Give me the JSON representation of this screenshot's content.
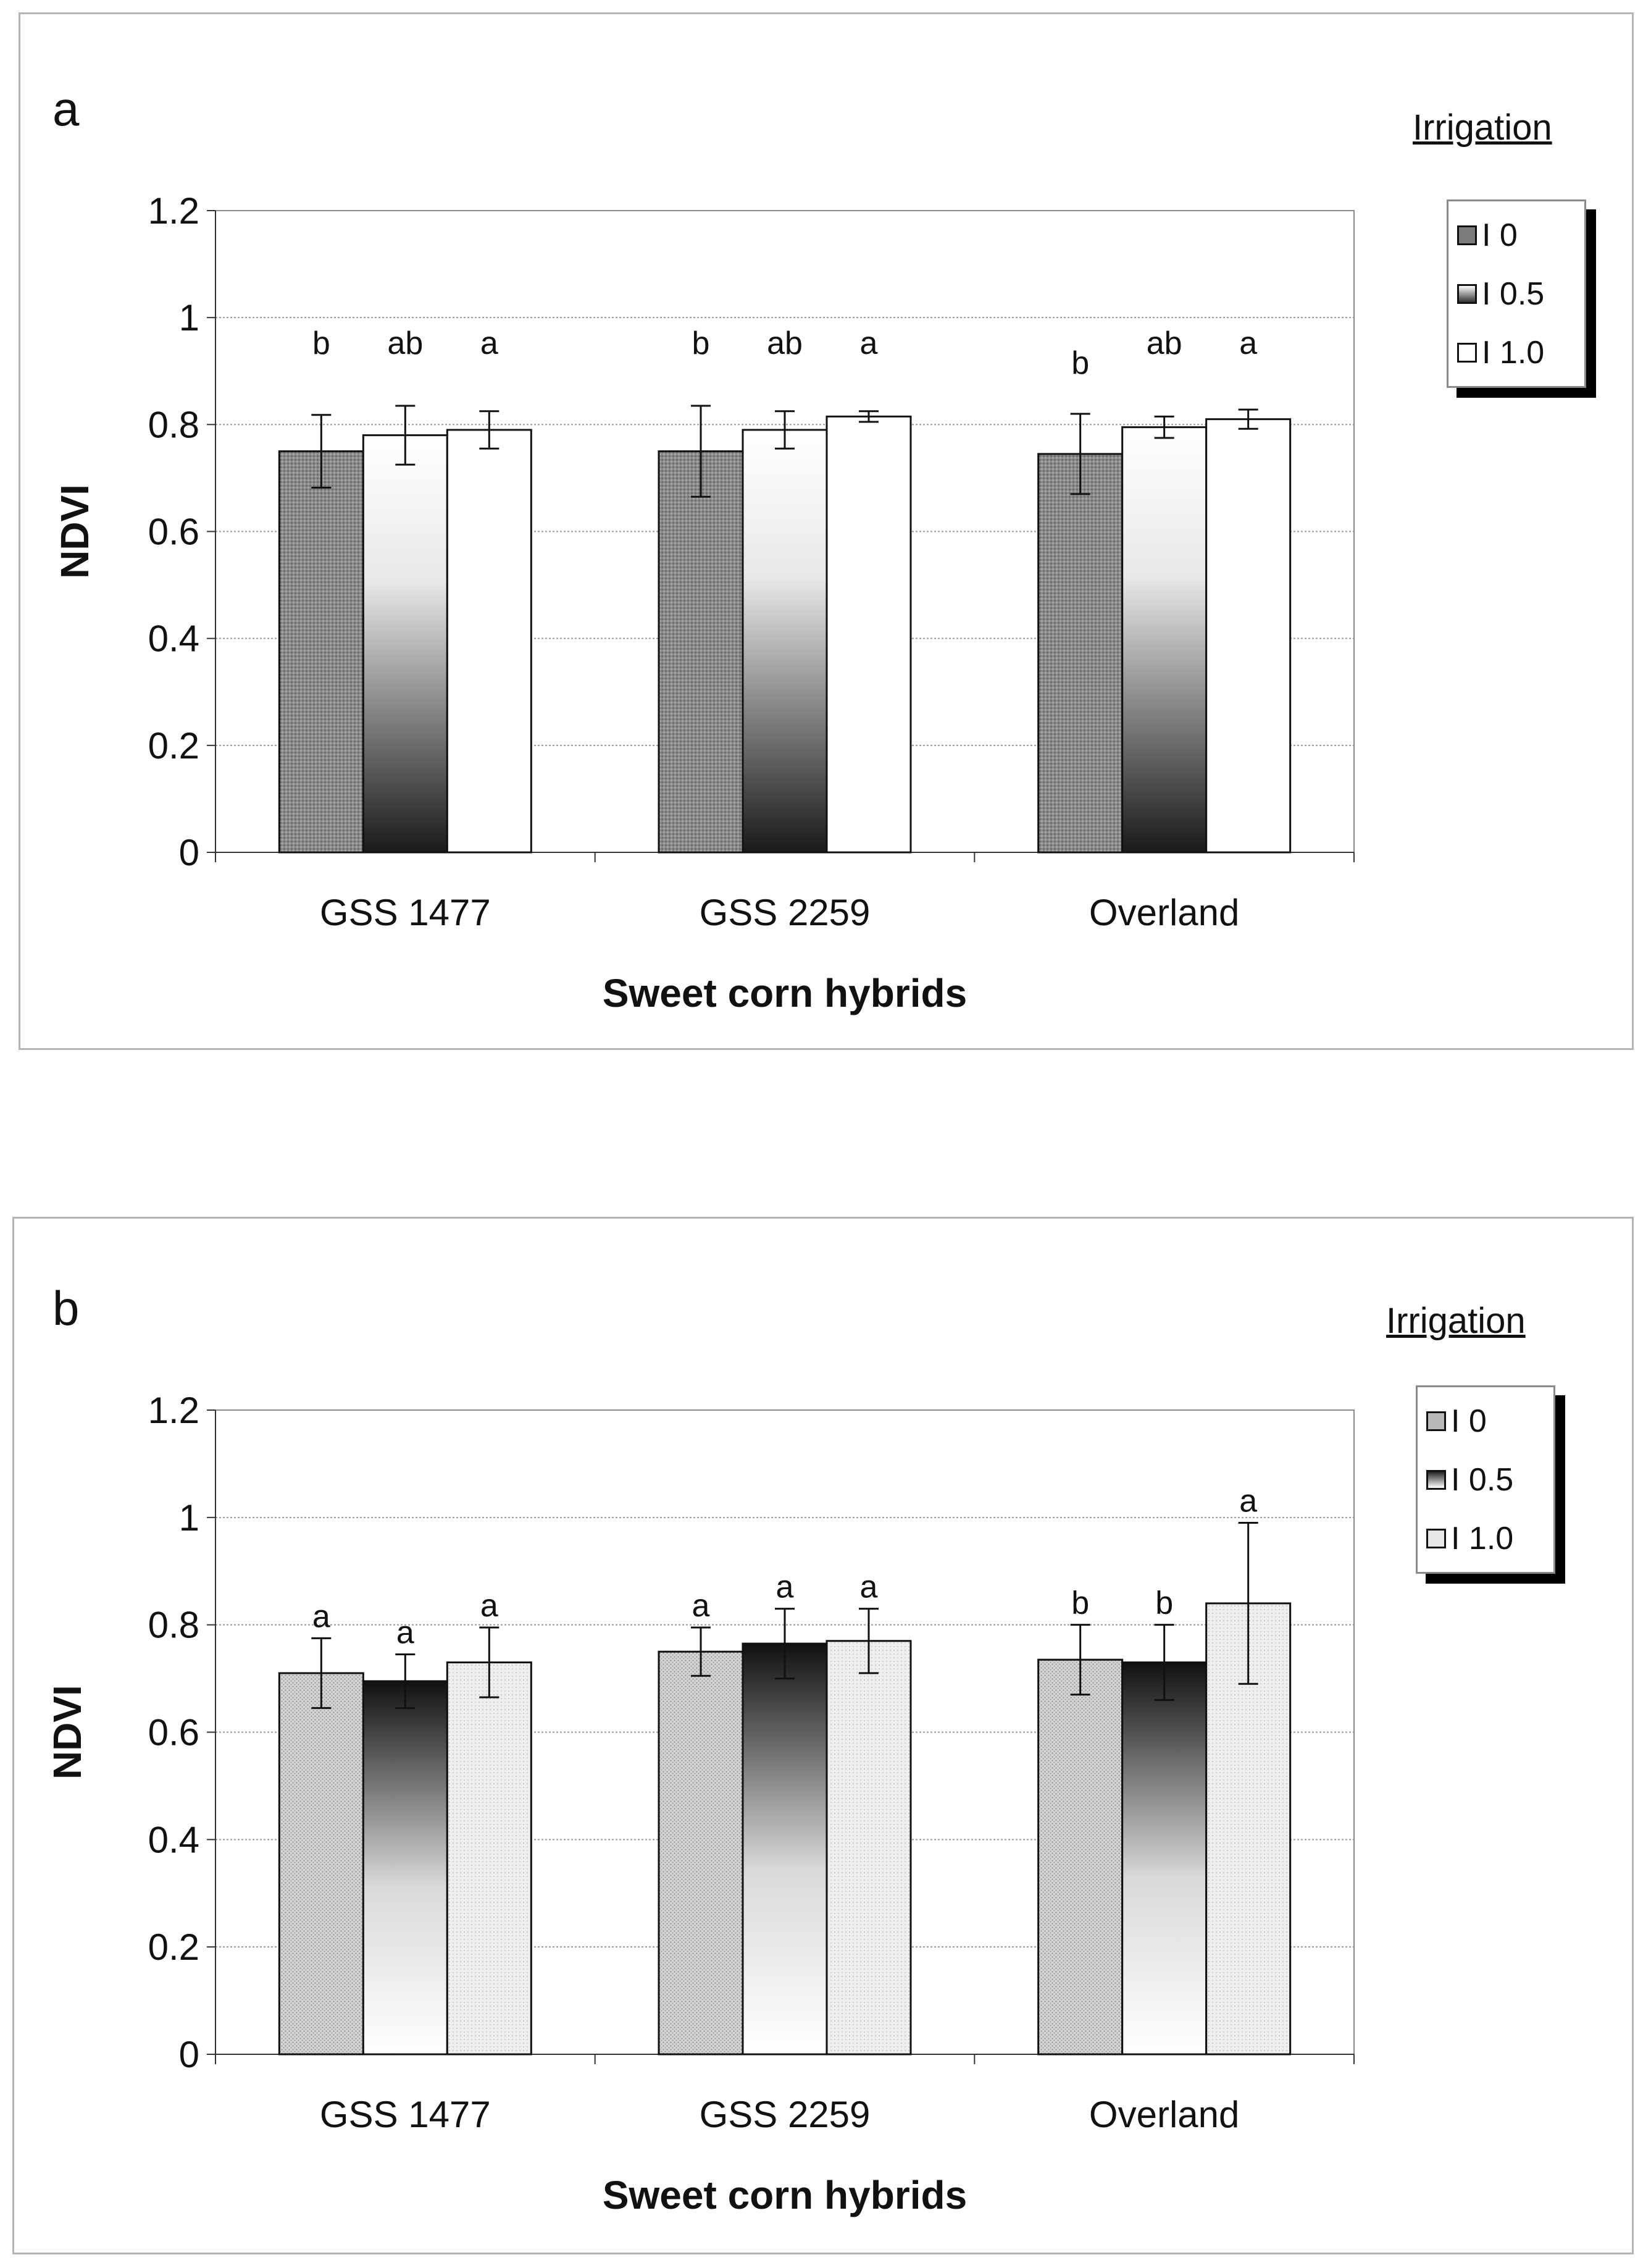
{
  "chart_data": [
    {
      "panel_label": "a",
      "type": "bar",
      "title": "",
      "xlabel": "Sweet corn hybrids",
      "ylabel": "NDVI",
      "ylim": [
        0,
        1.2
      ],
      "yticks": [
        "0",
        "0.2",
        "0.4",
        "0.6",
        "0.8",
        "1",
        "1.2"
      ],
      "grid": true,
      "categories": [
        "GSS 1477",
        "GSS 2259",
        "Overland"
      ],
      "legend_title": "Irrigation",
      "legend_position": "top-right",
      "series": [
        {
          "name": "I 0",
          "values": [
            0.75,
            0.75,
            0.745
          ],
          "errors": [
            0.068,
            0.085,
            0.075
          ],
          "letters": [
            "b",
            "b",
            "b"
          ]
        },
        {
          "name": "I 0.5",
          "values": [
            0.78,
            0.79,
            0.795
          ],
          "errors": [
            0.055,
            0.035,
            0.02
          ],
          "letters": [
            "ab",
            "ab",
            "ab"
          ]
        },
        {
          "name": "I 1.0",
          "values": [
            0.79,
            0.815,
            0.81
          ],
          "errors": [
            0.035,
            0.01,
            0.018
          ],
          "letters": [
            "a",
            "a",
            "a"
          ]
        }
      ]
    },
    {
      "panel_label": "b",
      "type": "bar",
      "title": "",
      "xlabel": "Sweet corn hybrids",
      "ylabel": "NDVI",
      "ylim": [
        0,
        1.2
      ],
      "yticks": [
        "0",
        "0.2",
        "0.4",
        "0.6",
        "0.8",
        "1",
        "1.2"
      ],
      "grid": true,
      "categories": [
        "GSS 1477",
        "GSS 2259",
        "Overland"
      ],
      "legend_title": "Irrigation",
      "legend_position": "top-right",
      "series": [
        {
          "name": "I 0",
          "values": [
            0.71,
            0.75,
            0.735
          ],
          "errors": [
            0.065,
            0.045,
            0.065
          ],
          "letters": [
            "a",
            "a",
            "b"
          ]
        },
        {
          "name": "I 0.5",
          "values": [
            0.695,
            0.765,
            0.73
          ],
          "errors": [
            0.05,
            0.065,
            0.07
          ],
          "letters": [
            "a",
            "a",
            "b"
          ]
        },
        {
          "name": "I 1.0",
          "values": [
            0.73,
            0.77,
            0.84
          ],
          "errors": [
            0.065,
            0.06,
            0.15
          ],
          "letters": [
            "a",
            "a",
            "a"
          ]
        }
      ]
    }
  ]
}
